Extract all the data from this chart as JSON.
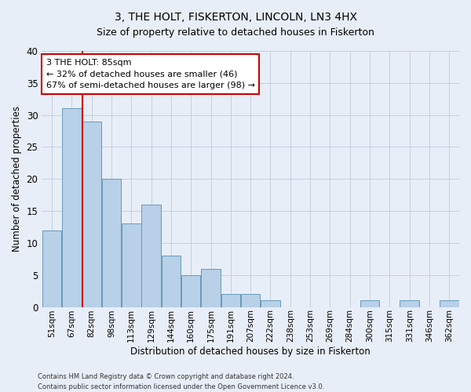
{
  "title": "3, THE HOLT, FISKERTON, LINCOLN, LN3 4HX",
  "subtitle": "Size of property relative to detached houses in Fiskerton",
  "xlabel": "Distribution of detached houses by size in Fiskerton",
  "ylabel": "Number of detached properties",
  "bin_labels": [
    "51sqm",
    "67sqm",
    "82sqm",
    "98sqm",
    "113sqm",
    "129sqm",
    "144sqm",
    "160sqm",
    "175sqm",
    "191sqm",
    "207sqm",
    "222sqm",
    "238sqm",
    "253sqm",
    "269sqm",
    "284sqm",
    "300sqm",
    "315sqm",
    "331sqm",
    "346sqm",
    "362sqm"
  ],
  "values": [
    12,
    31,
    29,
    20,
    13,
    16,
    8,
    5,
    6,
    2,
    2,
    1,
    0,
    0,
    0,
    0,
    1,
    0,
    1,
    0,
    1
  ],
  "bar_color": "#b8d0e8",
  "bar_edge_color": "#6699bb",
  "vline_x": 1.55,
  "vline_color": "#cc0000",
  "ylim": [
    0,
    40
  ],
  "yticks": [
    0,
    5,
    10,
    15,
    20,
    25,
    30,
    35,
    40
  ],
  "annotation_title": "3 THE HOLT: 85sqm",
  "annotation_line1": "← 32% of detached houses are smaller (46)",
  "annotation_line2": "67% of semi-detached houses are larger (98) →",
  "annotation_box_facecolor": "#ffffff",
  "annotation_box_edgecolor": "#cc0000",
  "footer1": "Contains HM Land Registry data © Crown copyright and database right 2024.",
  "footer2": "Contains public sector information licensed under the Open Government Licence v3.0.",
  "bg_color": "#e8eef8",
  "plot_bg_color": "#e8eef8",
  "grid_color": "#c5cfe0",
  "title_fontsize": 10,
  "subtitle_fontsize": 9
}
